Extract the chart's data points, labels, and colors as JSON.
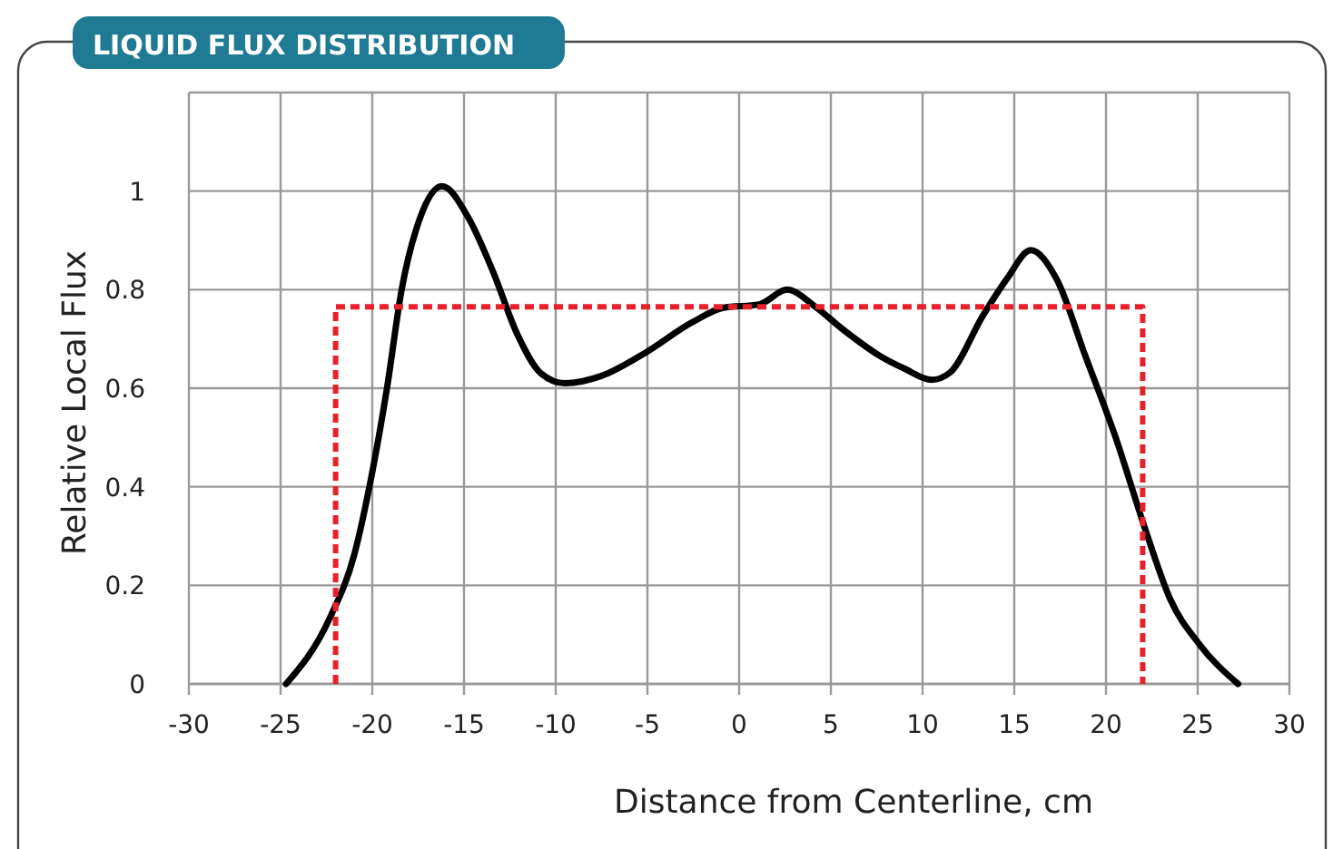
{
  "chart_data": {
    "type": "line",
    "title": "LIQUID FLUX DISTRIBUTION",
    "xlabel": "Distance from Centerline, cm",
    "ylabel": "Relative Local Flux",
    "xlim": [
      -30,
      30
    ],
    "xticks": [
      -30,
      -25,
      -20,
      -15,
      -10,
      -5,
      0,
      5,
      10,
      15,
      20,
      25,
      30
    ],
    "ylim": [
      0,
      1.2
    ],
    "yticks": [
      0,
      0.2,
      0.4,
      0.6,
      0.8,
      1,
      {
        "value": 1.2,
        "label": null
      }
    ],
    "grid": true,
    "marker": "none",
    "series": [
      {
        "color": "#000000",
        "line_style": "solid",
        "x": [
          -24.7,
          -22.3,
          -21.0,
          -20.0,
          -19.2,
          -18.4,
          -17.4,
          -16.2,
          -14.75,
          -13.4,
          -12.1,
          -10.8,
          -9.5,
          -7.5,
          -5.2,
          -2.5,
          -0.9,
          1.1,
          1.4,
          2.6,
          4.1,
          5.7,
          7.7,
          9.0,
          10.5,
          11.5,
          13.3,
          14.6,
          15.9,
          17.3,
          18.9,
          20.5,
          22.2,
          23.5,
          25.1,
          27.2
        ],
        "values": [
          0,
          0.135,
          0.26,
          0.43,
          0.6,
          0.8,
          0.945,
          1.01,
          0.945,
          0.835,
          0.71,
          0.63,
          0.61,
          0.625,
          0.67,
          0.735,
          0.763,
          0.77,
          0.775,
          0.8,
          0.767,
          0.718,
          0.665,
          0.64,
          0.617,
          0.632,
          0.748,
          0.822,
          0.88,
          0.822,
          0.663,
          0.503,
          0.307,
          0.172,
          0.08,
          0
        ]
      },
      {
        "color": "#e8202a",
        "line_style": "dashed",
        "x": [
          -22,
          -22,
          22,
          22
        ],
        "values": [
          0,
          0.765,
          0.765,
          0
        ]
      }
    ]
  }
}
